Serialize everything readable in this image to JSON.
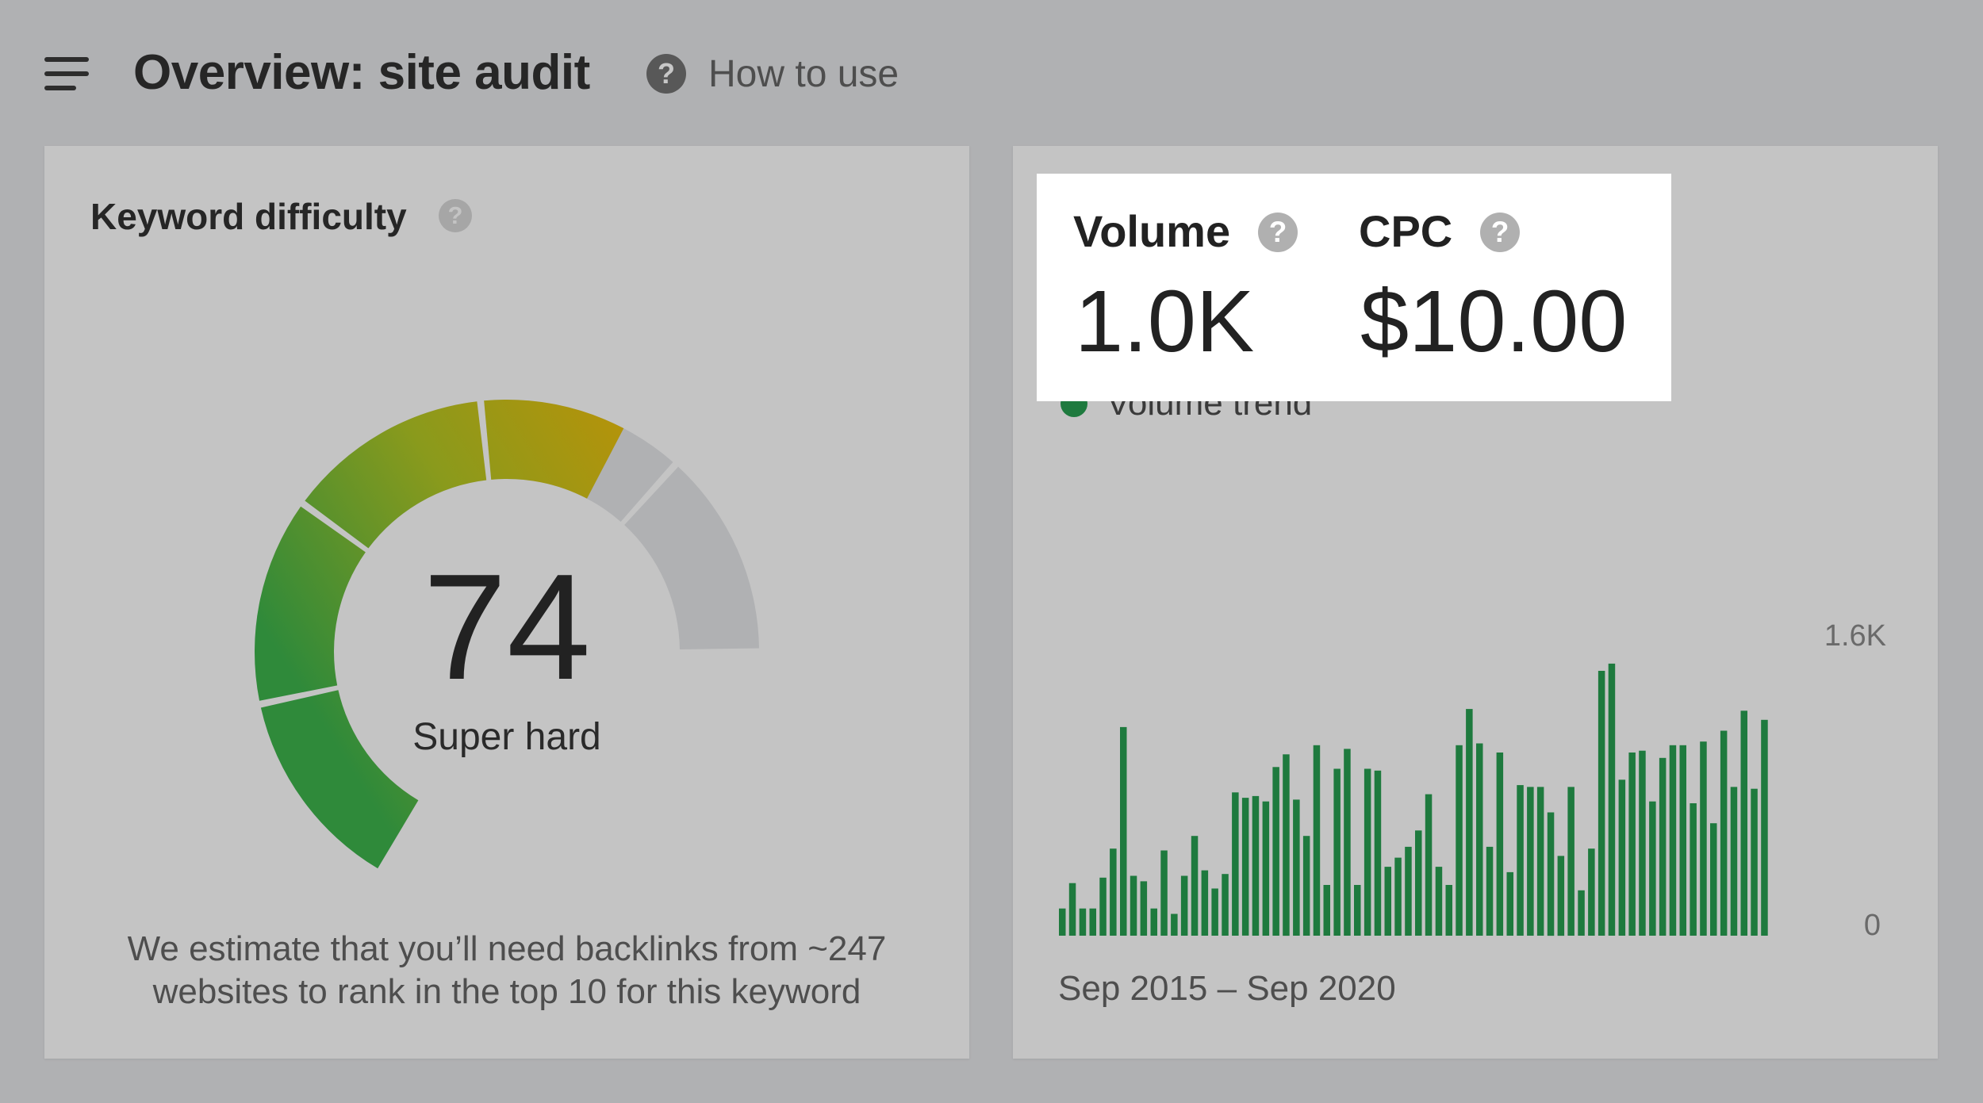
{
  "header": {
    "title": "Overview: site audit",
    "how_to_label": "How to use",
    "help_glyph": "?"
  },
  "keyword_difficulty": {
    "title": "Keyword difficulty",
    "score": "74",
    "score_value": 74,
    "max_score": 100,
    "label": "Super hard",
    "note": "We estimate that you’ll need backlinks from ~247 websites to rank in the top 10 for this keyword",
    "colors": {
      "low": "#2f8a3a",
      "mid": "#8a9a1c",
      "high": "#b5930a",
      "track": "#b0b1b3"
    }
  },
  "metrics": {
    "volume_label": "Volume",
    "volume_value": "1.0K",
    "cpc_label": "CPC",
    "cpc_value": "$10.00"
  },
  "volume_trend": {
    "legend_label": "Volume trend",
    "y_max_label": "1.6K",
    "y_min_label": "0",
    "date_range": "Sep 2015 – Sep 2020"
  },
  "chart_data": {
    "type": "bar",
    "series": [
      {
        "name": "Volume trend",
        "color": "#1e7a3e"
      }
    ],
    "ylim": [
      0,
      1600
    ],
    "yticks": [
      "0",
      "1.6K"
    ],
    "x_range": "Sep 2015 – Sep 2020",
    "values": [
      150,
      290,
      150,
      150,
      320,
      480,
      1150,
      330,
      300,
      150,
      470,
      120,
      330,
      550,
      360,
      260,
      340,
      790,
      760,
      770,
      740,
      930,
      1000,
      750,
      550,
      1050,
      280,
      920,
      1030,
      280,
      920,
      910,
      380,
      430,
      490,
      580,
      780,
      380,
      280,
      1050,
      1250,
      1060,
      490,
      1010,
      350,
      830,
      820,
      820,
      680,
      440,
      820,
      250,
      480,
      1460,
      1500,
      860,
      1010,
      1020,
      740,
      980,
      1050,
      1050,
      730,
      1070,
      620,
      1130,
      820,
      1240,
      810,
      1190
    ]
  },
  "colors": {
    "page_bg": "#b0b1b3",
    "card_bg": "#c4c4c4",
    "bar_green": "#1e7a3e",
    "highlight_bg": "#ffffff"
  }
}
